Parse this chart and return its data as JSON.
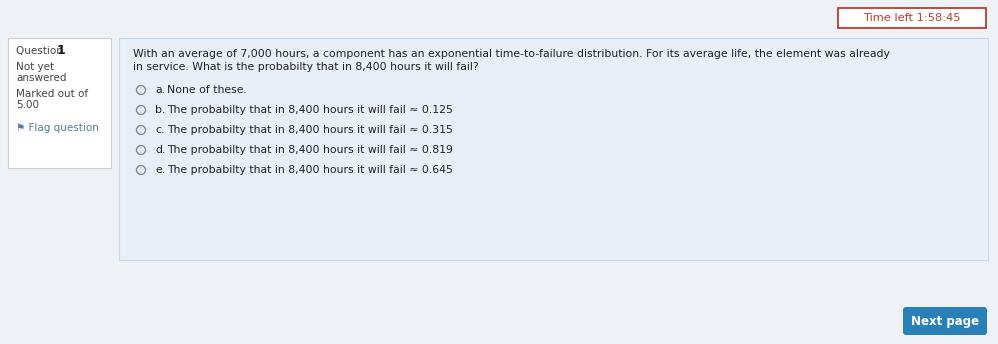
{
  "bg_color": "#eef2f6",
  "timer_text": "Time left 1:58:45",
  "timer_box_color": "#ffffff",
  "timer_border_color": "#c0392b",
  "timer_text_color": "#c0392b",
  "question_panel_bg": "#ffffff",
  "question_panel_border": "#cccccc",
  "question_label": "Question",
  "question_number": "1",
  "question_status1": "Not yet",
  "question_status2": "answered",
  "question_mark1": "Marked out of",
  "question_mark2": "5.00",
  "flag_text": "⚑ Flag question",
  "flag_text_color": "#5577aa",
  "answer_panel_bg": "#e8eff7",
  "answer_panel_border": "#c8d8e8",
  "question_text_line1": "With an average of 7,000 hours, a component has an exponential time-to-failure distribution. For its average life, the element was already",
  "question_text_line2": "in service. What is the probabilty that in 8,400 hours it will fail?",
  "question_text_color": "#222222",
  "options": [
    {
      "label": "a.",
      "text": "None of these."
    },
    {
      "label": "b.",
      "text": "The probabilty that in 8,400 hours it will fail ≈ 0.125"
    },
    {
      "label": "c.",
      "text": "The probabilty that in 8,400 hours it will fail ≈ 0.315"
    },
    {
      "label": "d.",
      "text": "The probabilty that in 8,400 hours it will fail ≈ 0.819"
    },
    {
      "label": "e.",
      "text": "The probabilty that in 8,400 hours it will fail ≈ 0.645"
    }
  ],
  "option_text_color": "#222222",
  "radio_color": "#888888",
  "next_btn_text": "Next page",
  "next_btn_bg": "#2980b9",
  "next_btn_text_color": "#ffffff",
  "font_size_question": 7.8,
  "font_size_options": 7.8,
  "font_size_panel": 7.5,
  "font_size_timer": 8.2,
  "font_size_next": 8.5,
  "panel_label_color": "#444444",
  "panel_number_color": "#111111"
}
